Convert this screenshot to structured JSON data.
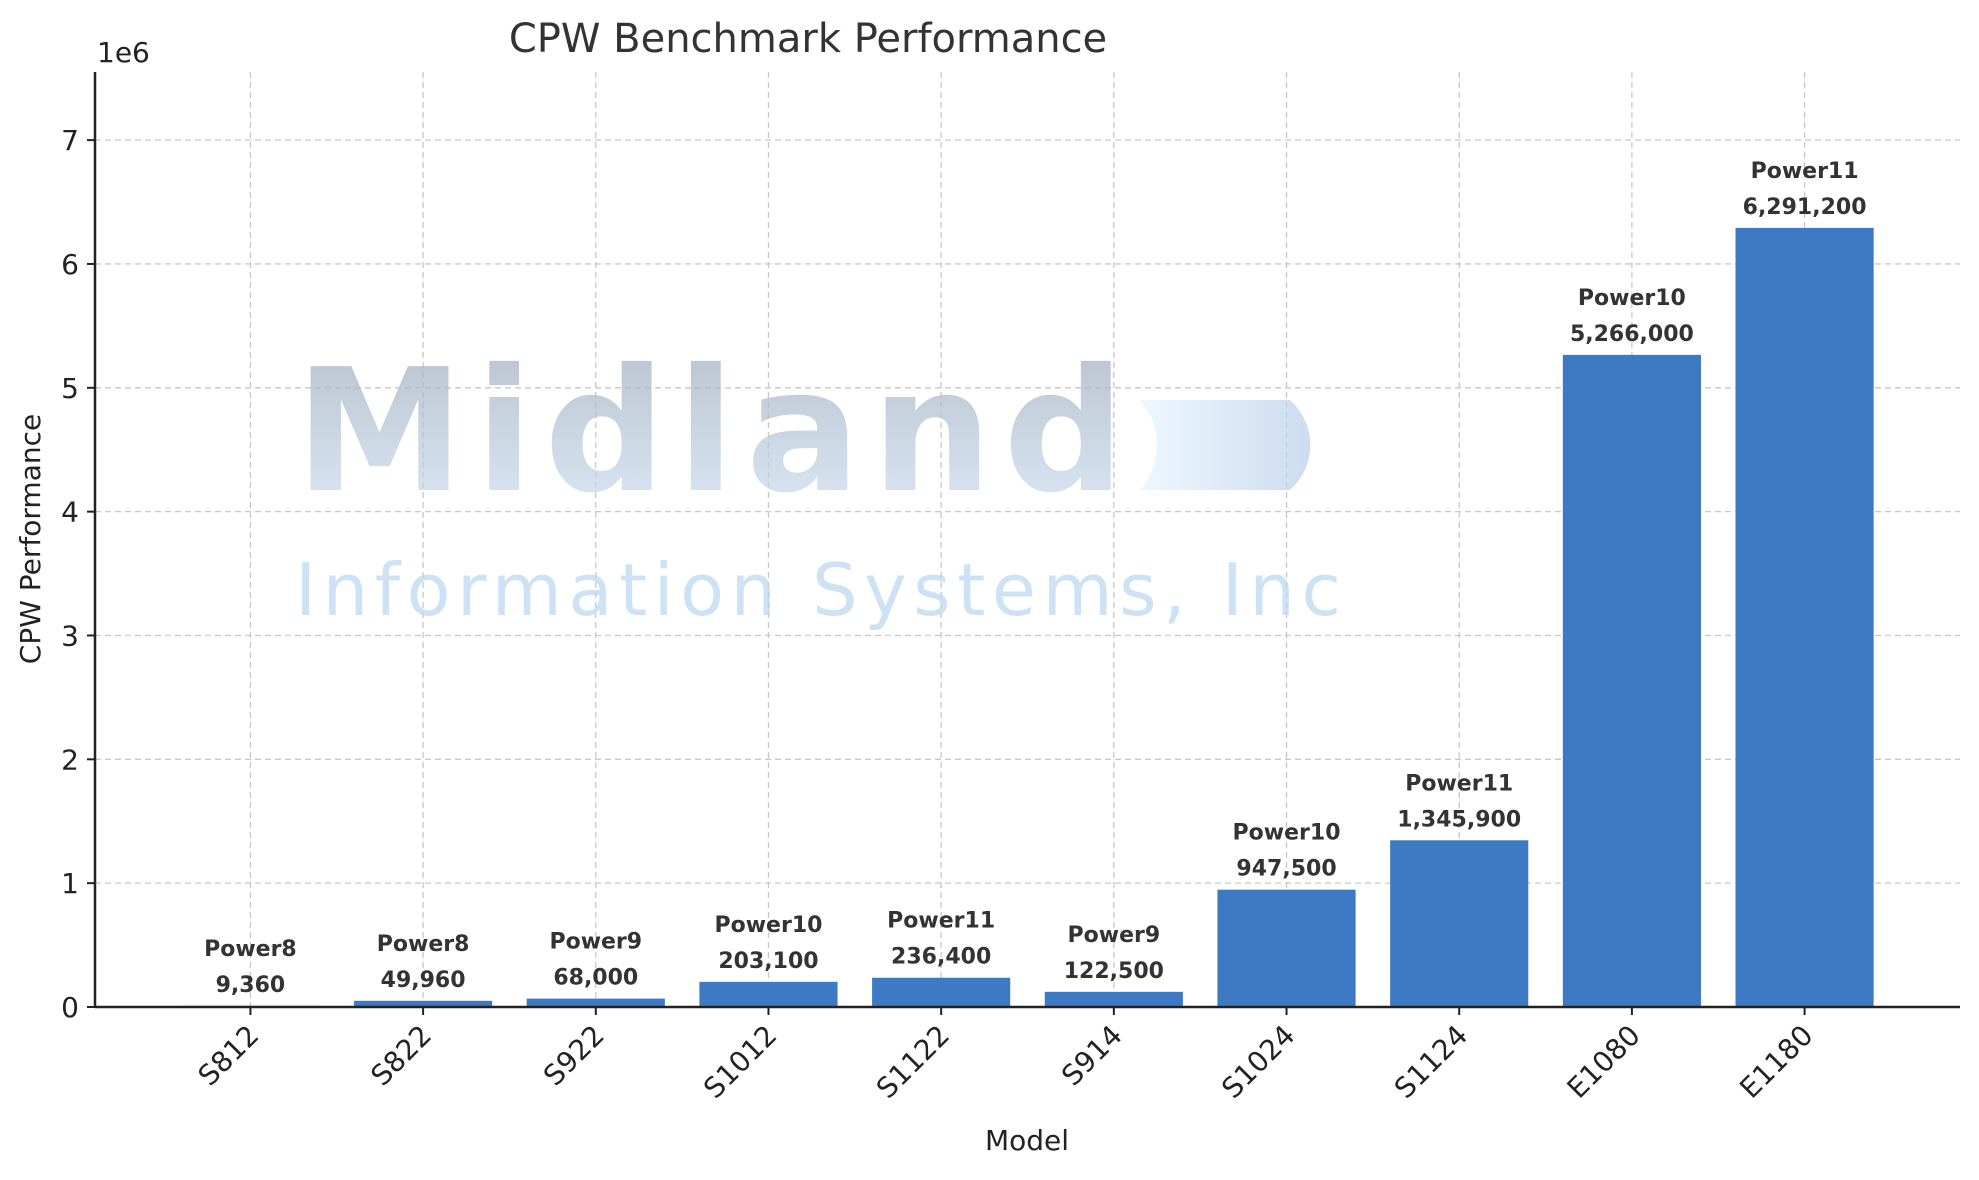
{
  "chart_data": {
    "type": "bar",
    "title": "CPW Benchmark Performance",
    "xlabel": "Model",
    "ylabel": "CPW Performance",
    "y_offset_label": "1e6",
    "ylim": [
      0,
      7550000
    ],
    "yticks": [
      0,
      1,
      2,
      3,
      4,
      5,
      6,
      7
    ],
    "grid": true,
    "bar_color": "#3d7ac3",
    "categories": [
      "S812",
      "S822",
      "S922",
      "S1012",
      "S1122",
      "S914",
      "S1024",
      "S1124",
      "E1080",
      "E1180"
    ],
    "values": [
      9360,
      49960,
      68000,
      203100,
      236400,
      122500,
      947500,
      1345900,
      5266000,
      6291200
    ],
    "annotations": [
      {
        "generation": "Power8",
        "value_label": "9,360"
      },
      {
        "generation": "Power8",
        "value_label": "49,960"
      },
      {
        "generation": "Power9",
        "value_label": "68,000"
      },
      {
        "generation": "Power10",
        "value_label": "203,100"
      },
      {
        "generation": "Power11",
        "value_label": "236,400"
      },
      {
        "generation": "Power9",
        "value_label": "122,500"
      },
      {
        "generation": "Power10",
        "value_label": "947,500"
      },
      {
        "generation": "Power11",
        "value_label": "1,345,900"
      },
      {
        "generation": "Power10",
        "value_label": "5,266,000"
      },
      {
        "generation": "Power11",
        "value_label": "6,291,200"
      }
    ]
  },
  "watermark": {
    "name": "Midland",
    "subtitle": "Information Systems, Inc"
  }
}
